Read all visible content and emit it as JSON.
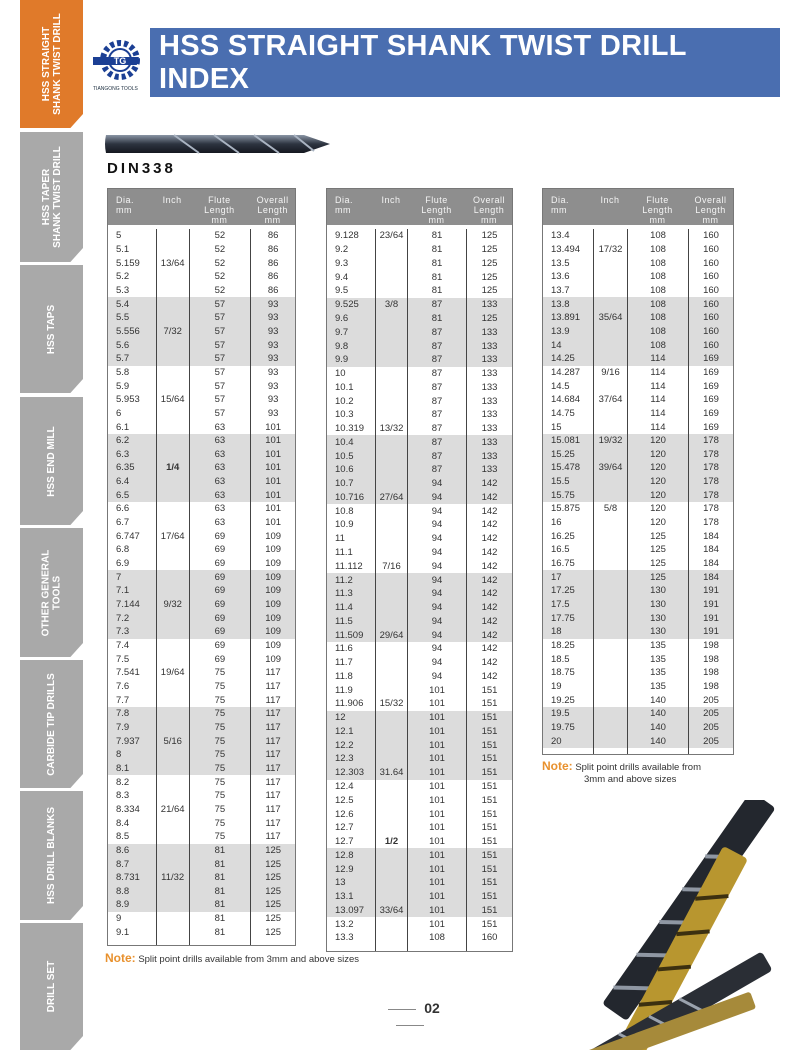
{
  "sidebar": {
    "items": [
      {
        "label": "HSS STRAIGHT\nSHANK TWIST DRILL",
        "active": true
      },
      {
        "label": "HSS TAPER\nSHANK TWIST DRILL"
      },
      {
        "label": "HSS TAPS"
      },
      {
        "label": "HSS END MILL"
      },
      {
        "label": "OTHER GENERAL\nTOOLS"
      },
      {
        "label": "CARBIDE TIP DRILLS"
      },
      {
        "label": "HSS DRILL BLANKS"
      },
      {
        "label": "DRILL SET"
      }
    ]
  },
  "header": {
    "title": "HSS STRAIGHT SHANK TWIST DRILL INDEX",
    "logo_text": "TIANGONG TOOLS",
    "logo_mark": "TG"
  },
  "standard": "DIN338",
  "columns": [
    "Dia.\nmm",
    "Inch",
    "Flute\nLength\nmm",
    "Overall\nLength\nmm"
  ],
  "tables": [
    {
      "rows": [
        [
          "5",
          "",
          "52",
          "86"
        ],
        [
          "5.1",
          "",
          "52",
          "86"
        ],
        [
          "5.159",
          "13/64",
          "52",
          "86"
        ],
        [
          "5.2",
          "",
          "52",
          "86"
        ],
        [
          "5.3",
          "",
          "52",
          "86"
        ],
        [
          "5.4",
          "",
          "57",
          "93"
        ],
        [
          "5.5",
          "",
          "57",
          "93"
        ],
        [
          "5.556",
          "7/32",
          "57",
          "93"
        ],
        [
          "5.6",
          "",
          "57",
          "93"
        ],
        [
          "5.7",
          "",
          "57",
          "93"
        ],
        [
          "5.8",
          "",
          "57",
          "93"
        ],
        [
          "5.9",
          "",
          "57",
          "93"
        ],
        [
          "5.953",
          "15/64",
          "57",
          "93"
        ],
        [
          "6",
          "",
          "57",
          "93"
        ],
        [
          "6.1",
          "",
          "63",
          "101"
        ],
        [
          "6.2",
          "",
          "63",
          "101"
        ],
        [
          "6.3",
          "",
          "63",
          "101"
        ],
        [
          "6.35",
          "1/4",
          "63",
          "101"
        ],
        [
          "6.4",
          "",
          "63",
          "101"
        ],
        [
          "6.5",
          "",
          "63",
          "101"
        ],
        [
          "6.6",
          "",
          "63",
          "101"
        ],
        [
          "6.7",
          "",
          "63",
          "101"
        ],
        [
          "6.747",
          "17/64",
          "69",
          "109"
        ],
        [
          "6.8",
          "",
          "69",
          "109"
        ],
        [
          "6.9",
          "",
          "69",
          "109"
        ],
        [
          "7",
          "",
          "69",
          "109"
        ],
        [
          "7.1",
          "",
          "69",
          "109"
        ],
        [
          "7.144",
          "9/32",
          "69",
          "109"
        ],
        [
          "7.2",
          "",
          "69",
          "109"
        ],
        [
          "7.3",
          "",
          "69",
          "109"
        ],
        [
          "7.4",
          "",
          "69",
          "109"
        ],
        [
          "7.5",
          "",
          "69",
          "109"
        ],
        [
          "7.541",
          "19/64",
          "75",
          "117"
        ],
        [
          "7.6",
          "",
          "75",
          "117"
        ],
        [
          "7.7",
          "",
          "75",
          "117"
        ],
        [
          "7.8",
          "",
          "75",
          "117"
        ],
        [
          "7.9",
          "",
          "75",
          "117"
        ],
        [
          "7.937",
          "5/16",
          "75",
          "117"
        ],
        [
          "8",
          "",
          "75",
          "117"
        ],
        [
          "8.1",
          "",
          "75",
          "117"
        ],
        [
          "8.2",
          "",
          "75",
          "117"
        ],
        [
          "8.3",
          "",
          "75",
          "117"
        ],
        [
          "8.334",
          "21/64",
          "75",
          "117"
        ],
        [
          "8.4",
          "",
          "75",
          "117"
        ],
        [
          "8.5",
          "",
          "75",
          "117"
        ],
        [
          "8.6",
          "",
          "81",
          "125"
        ],
        [
          "8.7",
          "",
          "81",
          "125"
        ],
        [
          "8.731",
          "11/32",
          "81",
          "125"
        ],
        [
          "8.8",
          "",
          "81",
          "125"
        ],
        [
          "8.9",
          "",
          "81",
          "125"
        ],
        [
          "9",
          "",
          "81",
          "125"
        ],
        [
          "9.1",
          "",
          "81",
          "125"
        ]
      ]
    },
    {
      "rows": [
        [
          "9.128",
          "23/64",
          "81",
          "125"
        ],
        [
          "9.2",
          "",
          "81",
          "125"
        ],
        [
          "9.3",
          "",
          "81",
          "125"
        ],
        [
          "9.4",
          "",
          "81",
          "125"
        ],
        [
          "9.5",
          "",
          "81",
          "125"
        ],
        [
          "9.525",
          "3/8",
          "87",
          "133"
        ],
        [
          "9.6",
          "",
          "81",
          "125"
        ],
        [
          "9.7",
          "",
          "87",
          "133"
        ],
        [
          "9.8",
          "",
          "87",
          "133"
        ],
        [
          "9.9",
          "",
          "87",
          "133"
        ],
        [
          "10",
          "",
          "87",
          "133"
        ],
        [
          "10.1",
          "",
          "87",
          "133"
        ],
        [
          "10.2",
          "",
          "87",
          "133"
        ],
        [
          "10.3",
          "",
          "87",
          "133"
        ],
        [
          "10.319",
          "13/32",
          "87",
          "133"
        ],
        [
          "10.4",
          "",
          "87",
          "133"
        ],
        [
          "10.5",
          "",
          "87",
          "133"
        ],
        [
          "10.6",
          "",
          "87",
          "133"
        ],
        [
          "10.7",
          "",
          "94",
          "142"
        ],
        [
          "10.716",
          "27/64",
          "94",
          "142"
        ],
        [
          "10.8",
          "",
          "94",
          "142"
        ],
        [
          "10.9",
          "",
          "94",
          "142"
        ],
        [
          "11",
          "",
          "94",
          "142"
        ],
        [
          "11.1",
          "",
          "94",
          "142"
        ],
        [
          "11.112",
          "7/16",
          "94",
          "142"
        ],
        [
          "11.2",
          "",
          "94",
          "142"
        ],
        [
          "11.3",
          "",
          "94",
          "142"
        ],
        [
          "11.4",
          "",
          "94",
          "142"
        ],
        [
          "11.5",
          "",
          "94",
          "142"
        ],
        [
          "11.509",
          "29/64",
          "94",
          "142"
        ],
        [
          "11.6",
          "",
          "94",
          "142"
        ],
        [
          "11.7",
          "",
          "94",
          "142"
        ],
        [
          "11.8",
          "",
          "94",
          "142"
        ],
        [
          "11.9",
          "",
          "101",
          "151"
        ],
        [
          "11.906",
          "15/32",
          "101",
          "151"
        ],
        [
          "12",
          "",
          "101",
          "151"
        ],
        [
          "12.1",
          "",
          "101",
          "151"
        ],
        [
          "12.2",
          "",
          "101",
          "151"
        ],
        [
          "12.3",
          "",
          "101",
          "151"
        ],
        [
          "12.303",
          "31.64",
          "101",
          "151"
        ],
        [
          "12.4",
          "",
          "101",
          "151"
        ],
        [
          "12.5",
          "",
          "101",
          "151"
        ],
        [
          "12.6",
          "",
          "101",
          "151"
        ],
        [
          "12.7",
          "",
          "101",
          "151"
        ],
        [
          "12.7",
          "1/2",
          "101",
          "151"
        ],
        [
          "12.8",
          "",
          "101",
          "151"
        ],
        [
          "12.9",
          "",
          "101",
          "151"
        ],
        [
          "13",
          "",
          "101",
          "151"
        ],
        [
          "13.1",
          "",
          "101",
          "151"
        ],
        [
          "13.097",
          "33/64",
          "101",
          "151"
        ],
        [
          "13.2",
          "",
          "101",
          "151"
        ],
        [
          "13.3",
          "",
          "108",
          "160"
        ]
      ]
    },
    {
      "rows": [
        [
          "13.4",
          "",
          "108",
          "160"
        ],
        [
          "13.494",
          "17/32",
          "108",
          "160"
        ],
        [
          "13.5",
          "",
          "108",
          "160"
        ],
        [
          "13.6",
          "",
          "108",
          "160"
        ],
        [
          "13.7",
          "",
          "108",
          "160"
        ],
        [
          "13.8",
          "",
          "108",
          "160"
        ],
        [
          "13.891",
          "35/64",
          "108",
          "160"
        ],
        [
          "13.9",
          "",
          "108",
          "160"
        ],
        [
          "14",
          "",
          "108",
          "160"
        ],
        [
          "14.25",
          "",
          "114",
          "169"
        ],
        [
          "14.287",
          "9/16",
          "114",
          "169"
        ],
        [
          "14.5",
          "",
          "114",
          "169"
        ],
        [
          "14.684",
          "37/64",
          "114",
          "169"
        ],
        [
          "14.75",
          "",
          "114",
          "169"
        ],
        [
          "15",
          "",
          "114",
          "169"
        ],
        [
          "15.081",
          "19/32",
          "120",
          "178"
        ],
        [
          "15.25",
          "",
          "120",
          "178"
        ],
        [
          "15.478",
          "39/64",
          "120",
          "178"
        ],
        [
          "15.5",
          "",
          "120",
          "178"
        ],
        [
          "15.75",
          "",
          "120",
          "178"
        ],
        [
          "15.875",
          "5/8",
          "120",
          "178"
        ],
        [
          "16",
          "",
          "120",
          "178"
        ],
        [
          "16.25",
          "",
          "125",
          "184"
        ],
        [
          "16.5",
          "",
          "125",
          "184"
        ],
        [
          "16.75",
          "",
          "125",
          "184"
        ],
        [
          "17",
          "",
          "125",
          "184"
        ],
        [
          "17.25",
          "",
          "130",
          "191"
        ],
        [
          "17.5",
          "",
          "130",
          "191"
        ],
        [
          "17.75",
          "",
          "130",
          "191"
        ],
        [
          "18",
          "",
          "130",
          "191"
        ],
        [
          "18.25",
          "",
          "135",
          "198"
        ],
        [
          "18.5",
          "",
          "135",
          "198"
        ],
        [
          "18.75",
          "",
          "135",
          "198"
        ],
        [
          "19",
          "",
          "135",
          "198"
        ],
        [
          "19.25",
          "",
          "140",
          "205"
        ],
        [
          "19.5",
          "",
          "140",
          "205"
        ],
        [
          "19.75",
          "",
          "140",
          "205"
        ],
        [
          "20",
          "",
          "140",
          "205"
        ]
      ]
    }
  ],
  "notes": {
    "label": "Note:",
    "main": "Split point drills available from 3mm and above sizes",
    "side_line1": "Split point drills available from",
    "side_line2": "3mm and above sizes"
  },
  "page_number": "02",
  "colors": {
    "active_tab": "#e07a2a",
    "tab": "#a9a9a9",
    "banner": "#4a6eb0",
    "note": "#e8912e",
    "table_header": "#8e8e8e",
    "row_shade": "#dcdcdc"
  }
}
